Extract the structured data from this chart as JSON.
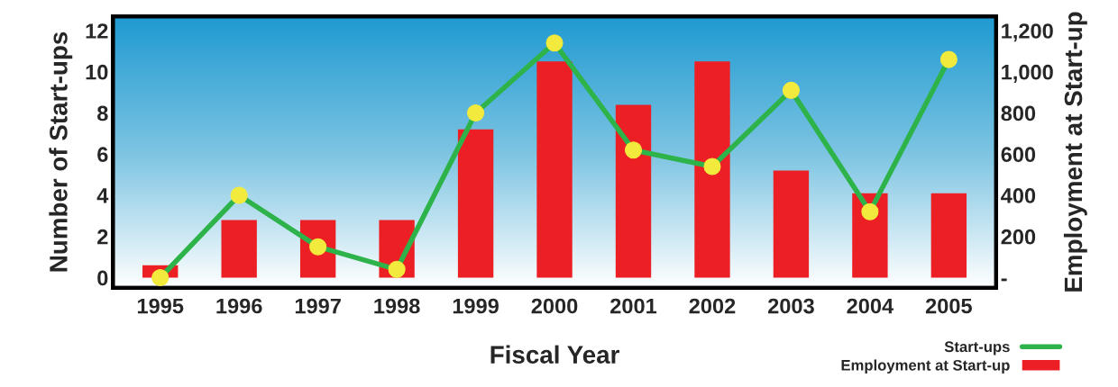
{
  "chart_data": {
    "type": "bar",
    "xlabel": "Fiscal Year",
    "ylabel": "Number of Start-ups",
    "y2label": "Employment at Start-up",
    "categories": [
      "1995",
      "1996",
      "1997",
      "1998",
      "1999",
      "2000",
      "2001",
      "2002",
      "2003",
      "2004",
      "2005"
    ],
    "series": [
      {
        "name": "Start-ups",
        "type": "line",
        "color": "#2db34a",
        "values": [
          0,
          4,
          1.5,
          0.4,
          8,
          11.4,
          6.2,
          5.4,
          9.1,
          3.2,
          10.6
        ]
      },
      {
        "name": "Employment at Start-up",
        "axis": "y2",
        "color": "#ec1f24",
        "values": [
          60,
          280,
          280,
          280,
          720,
          1050,
          840,
          1050,
          520,
          410,
          410
        ]
      }
    ],
    "ylim": [
      -0.5,
      12.7
    ],
    "yticks": [
      0,
      2,
      4,
      6,
      8,
      10,
      12
    ],
    "y2lim": [
      -50,
      1270
    ],
    "y2ticks": [
      {
        "value": 0,
        "label": "-"
      },
      200,
      400,
      600,
      800,
      {
        "value": 1000,
        "label": "1,000"
      },
      {
        "value": 1200,
        "label": "1,200"
      }
    ],
    "marker": "circle",
    "legend": "bottom right",
    "grid": false
  }
}
